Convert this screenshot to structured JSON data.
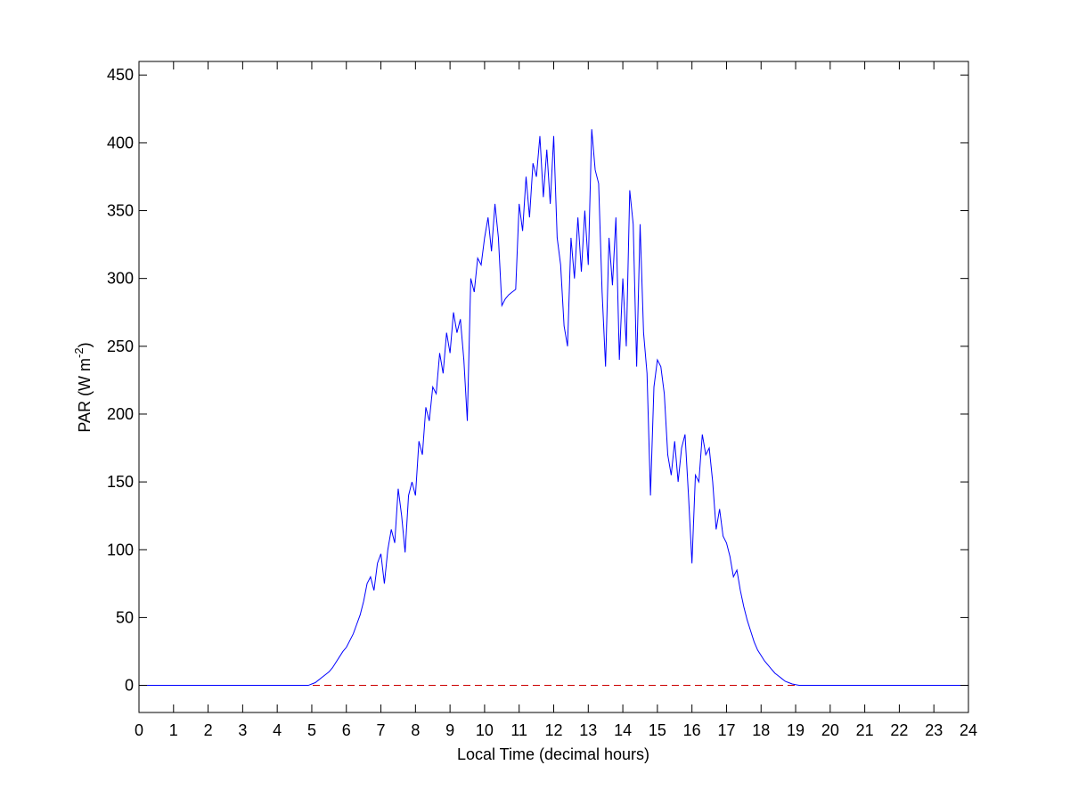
{
  "chart_data": {
    "type": "line",
    "x_label": "Local Time (decimal hours)",
    "y_label": {
      "text": "PAR (W m",
      "superscript": "-2",
      "suffix": ")"
    },
    "xlim": [
      0,
      24
    ],
    "xticks": [
      0,
      1,
      2,
      3,
      4,
      5,
      6,
      7,
      8,
      9,
      10,
      11,
      12,
      13,
      14,
      15,
      16,
      17,
      18,
      19,
      20,
      21,
      22,
      23,
      24
    ],
    "ylim": [
      -20,
      460
    ],
    "yticks": [
      0,
      50,
      100,
      150,
      200,
      250,
      300,
      350,
      400,
      450
    ],
    "reference_line": {
      "y": 0,
      "color": "#cc0000",
      "style": "dashed"
    },
    "series": [
      {
        "color": "#0000ff",
        "x": [
          0,
          4.9,
          5.0,
          5.1,
          5.2,
          5.3,
          5.4,
          5.5,
          5.6,
          5.7,
          5.8,
          5.9,
          6.0,
          6.1,
          6.2,
          6.3,
          6.4,
          6.5,
          6.6,
          6.7,
          6.8,
          6.9,
          7.0,
          7.1,
          7.2,
          7.3,
          7.4,
          7.5,
          7.6,
          7.7,
          7.8,
          7.9,
          8.0,
          8.1,
          8.2,
          8.3,
          8.4,
          8.5,
          8.6,
          8.7,
          8.8,
          8.9,
          9.0,
          9.1,
          9.2,
          9.3,
          9.4,
          9.5,
          9.6,
          9.7,
          9.8,
          9.9,
          10.0,
          10.1,
          10.2,
          10.3,
          10.4,
          10.5,
          10.6,
          10.7,
          10.8,
          10.9,
          11.0,
          11.1,
          11.2,
          11.3,
          11.4,
          11.5,
          11.6,
          11.7,
          11.8,
          11.9,
          12.0,
          12.1,
          12.2,
          12.3,
          12.4,
          12.5,
          12.6,
          12.7,
          12.8,
          12.9,
          13.0,
          13.1,
          13.2,
          13.3,
          13.4,
          13.5,
          13.6,
          13.7,
          13.8,
          13.9,
          14.0,
          14.1,
          14.2,
          14.3,
          14.4,
          14.5,
          14.6,
          14.7,
          14.8,
          14.9,
          15.0,
          15.1,
          15.2,
          15.3,
          15.4,
          15.5,
          15.6,
          15.7,
          15.8,
          15.9,
          16.0,
          16.1,
          16.2,
          16.3,
          16.4,
          16.5,
          16.6,
          16.7,
          16.8,
          16.9,
          17.0,
          17.1,
          17.2,
          17.3,
          17.4,
          17.5,
          17.6,
          17.7,
          17.8,
          17.9,
          18.0,
          18.1,
          18.2,
          18.3,
          18.4,
          18.5,
          18.6,
          18.7,
          18.8,
          18.9,
          19.0,
          19.1,
          19.2,
          19.3,
          24
        ],
        "values": [
          0,
          0,
          1,
          2,
          4,
          6,
          8,
          10,
          13,
          17,
          21,
          25,
          28,
          33,
          38,
          45,
          52,
          62,
          75,
          80,
          70,
          90,
          97,
          75,
          100,
          115,
          105,
          145,
          125,
          98,
          140,
          150,
          140,
          180,
          170,
          205,
          195,
          220,
          215,
          245,
          230,
          260,
          245,
          275,
          260,
          270,
          240,
          195,
          300,
          290,
          315,
          310,
          330,
          345,
          320,
          355,
          330,
          280,
          285,
          288,
          290,
          292,
          355,
          335,
          375,
          345,
          385,
          375,
          405,
          360,
          395,
          355,
          405,
          330,
          310,
          265,
          250,
          330,
          300,
          345,
          305,
          350,
          310,
          410,
          380,
          370,
          290,
          235,
          330,
          295,
          345,
          240,
          300,
          250,
          365,
          340,
          235,
          340,
          260,
          230,
          140,
          220,
          240,
          235,
          215,
          170,
          155,
          180,
          150,
          175,
          185,
          140,
          90,
          155,
          150,
          185,
          170,
          175,
          150,
          115,
          130,
          110,
          105,
          95,
          80,
          85,
          70,
          58,
          48,
          40,
          32,
          26,
          22,
          18,
          15,
          12,
          9,
          7,
          5,
          3,
          2,
          1,
          0.5,
          0,
          0,
          0,
          0
        ]
      }
    ]
  }
}
